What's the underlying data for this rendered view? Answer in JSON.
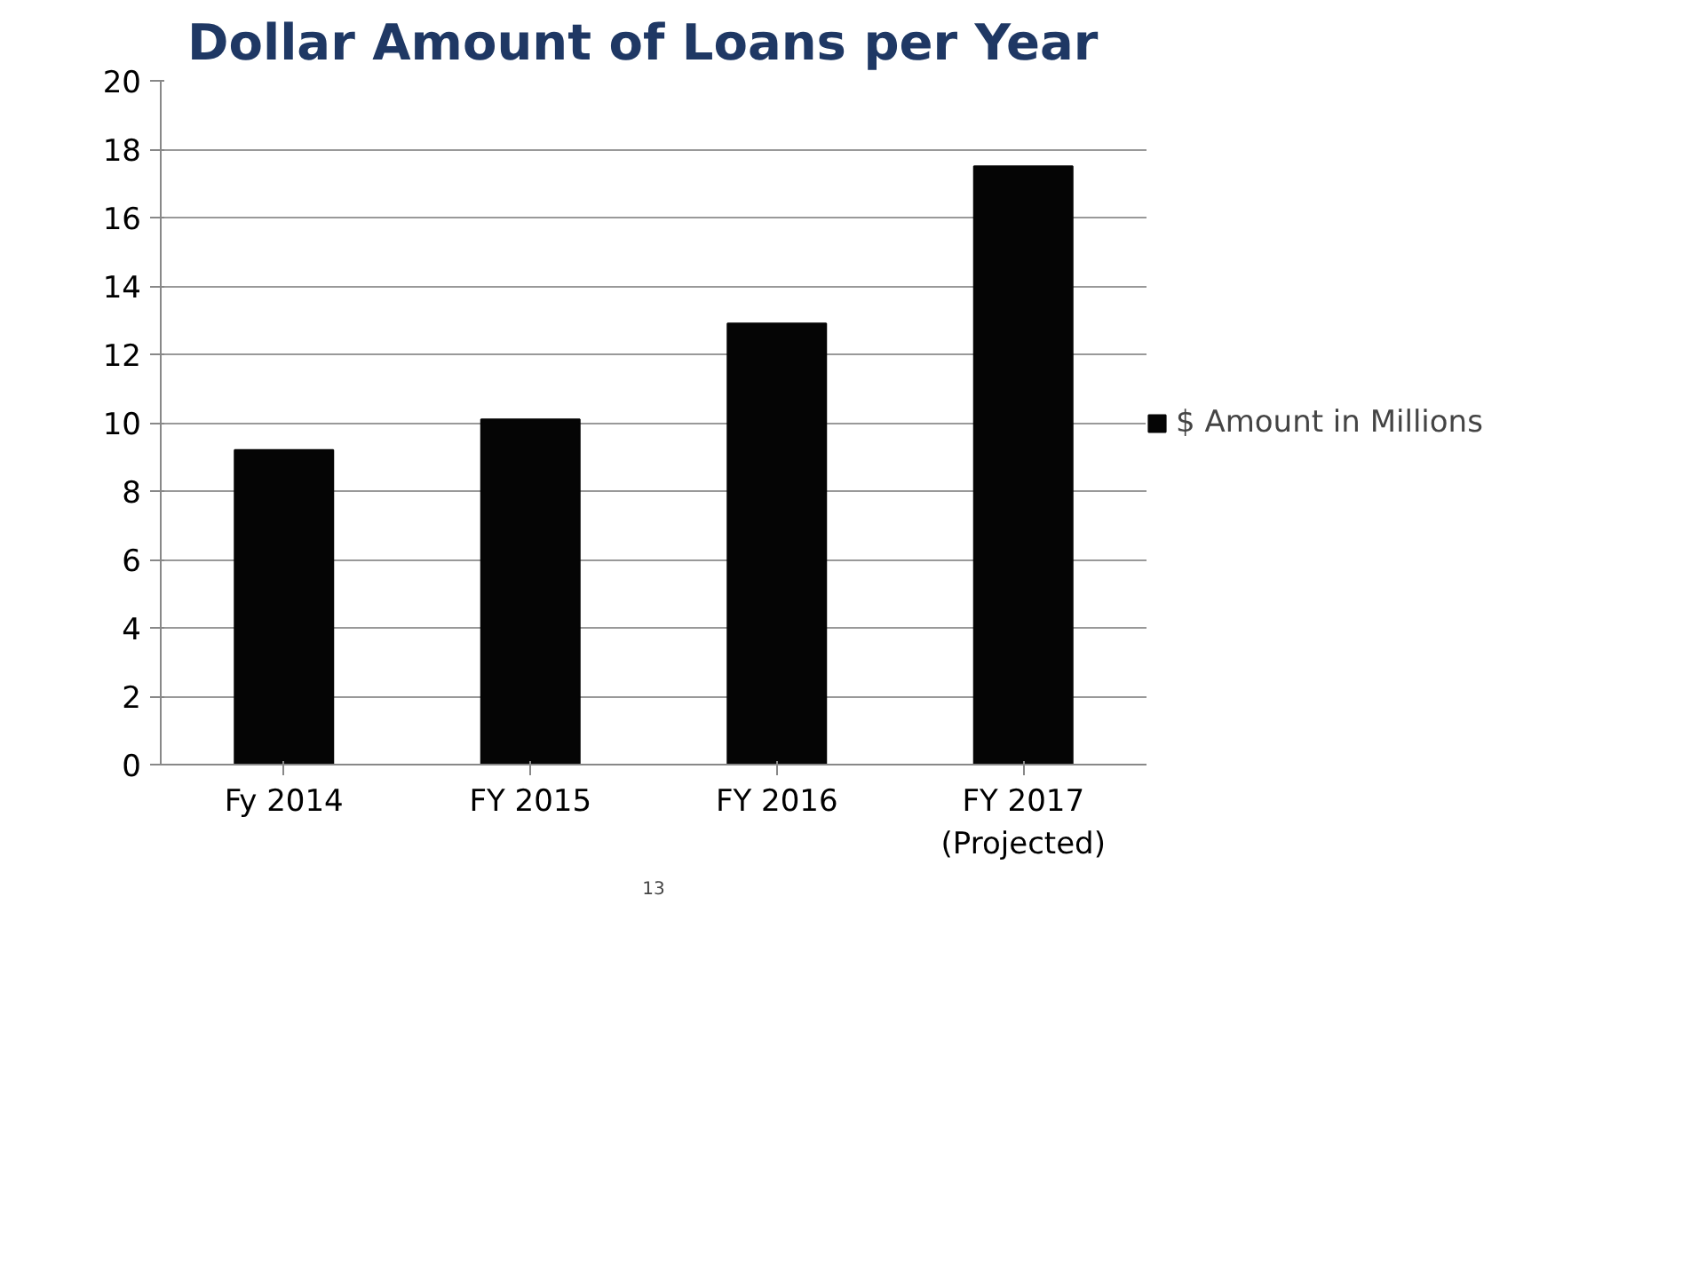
{
  "chart_data": {
    "type": "bar",
    "title": "Dollar Amount of Loans per Year",
    "categories": [
      "Fy 2014",
      "FY 2015",
      "FY 2016",
      "FY 2017\n(Projected)"
    ],
    "series": [
      {
        "name": "$ Amount in Millions",
        "color": "#050505",
        "values": [
          9.2,
          10.1,
          12.9,
          17.5
        ]
      }
    ],
    "ylim": [
      0,
      20
    ],
    "yticks": [
      0,
      2,
      4,
      6,
      8,
      10,
      12,
      14,
      16,
      18,
      20
    ],
    "grid": "y",
    "legend": "right",
    "annotations": [
      "13"
    ]
  }
}
